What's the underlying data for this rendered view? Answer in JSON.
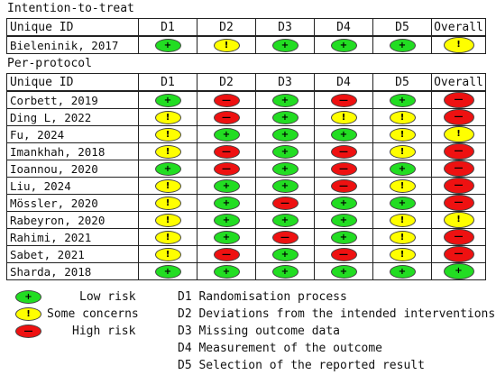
{
  "headers": {
    "id": "Unique ID",
    "domains": [
      "D1",
      "D2",
      "D3",
      "D4",
      "D5"
    ],
    "overall": "Overall"
  },
  "itt": {
    "title": "Intention-to-treat",
    "studies": [
      {
        "name": "Bieleninik, 2017",
        "judgements": [
          "low",
          "some",
          "low",
          "low",
          "low"
        ],
        "overall": "some"
      }
    ]
  },
  "pp": {
    "title": "Per-protocol",
    "studies": [
      {
        "name": "Corbett, 2019",
        "judgements": [
          "low",
          "high",
          "low",
          "high",
          "low"
        ],
        "overall": "high"
      },
      {
        "name": "Ding L, 2022",
        "judgements": [
          "some",
          "high",
          "low",
          "some",
          "some"
        ],
        "overall": "high"
      },
      {
        "name": "Fu, 2024",
        "judgements": [
          "some",
          "low",
          "low",
          "low",
          "some"
        ],
        "overall": "some"
      },
      {
        "name": "Imankhah, 2018",
        "judgements": [
          "some",
          "high",
          "low",
          "high",
          "some"
        ],
        "overall": "high"
      },
      {
        "name": "Ioannou, 2020",
        "judgements": [
          "low",
          "high",
          "low",
          "high",
          "low"
        ],
        "overall": "high"
      },
      {
        "name": "Liu, 2024",
        "judgements": [
          "some",
          "low",
          "low",
          "high",
          "some"
        ],
        "overall": "high"
      },
      {
        "name": "Mössler, 2020",
        "judgements": [
          "some",
          "low",
          "high",
          "low",
          "low"
        ],
        "overall": "high"
      },
      {
        "name": "Rabeyron, 2020",
        "judgements": [
          "some",
          "low",
          "low",
          "low",
          "some"
        ],
        "overall": "some"
      },
      {
        "name": "Rahimi, 2021",
        "judgements": [
          "some",
          "low",
          "high",
          "low",
          "some"
        ],
        "overall": "high"
      },
      {
        "name": "Sabet, 2021",
        "judgements": [
          "some",
          "high",
          "low",
          "high",
          "some"
        ],
        "overall": "high"
      },
      {
        "name": "Sharda, 2018",
        "judgements": [
          "low",
          "low",
          "low",
          "low",
          "low"
        ],
        "overall": "low"
      }
    ]
  },
  "symbols": {
    "low": "+",
    "some": "!",
    "high": "—"
  },
  "colors": {
    "low": "#22dd22",
    "some": "#ffff00",
    "high": "#ee1111"
  },
  "legend": {
    "items": [
      {
        "level": "low",
        "label": "Low risk"
      },
      {
        "level": "some",
        "label": "Some concerns"
      },
      {
        "level": "high",
        "label": "High risk"
      }
    ],
    "domains": [
      "D1 Randomisation process",
      "D2 Deviations from the intended interventions",
      "D3 Missing outcome data",
      "D4 Measurement of the outcome",
      "D5 Selection of the reported result"
    ]
  }
}
